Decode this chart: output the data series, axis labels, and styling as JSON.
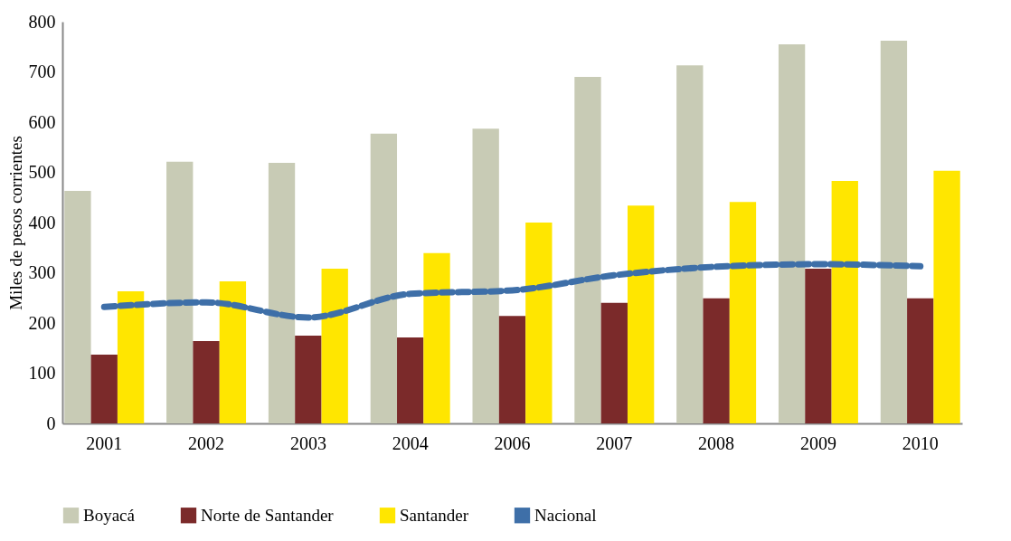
{
  "chart_data": {
    "type": "bar",
    "ylabel": "Miles de pesos corrientes",
    "categories": [
      "2001",
      "2002",
      "2003",
      "2004",
      "2006",
      "2007",
      "2008",
      "2009",
      "2010"
    ],
    "ylim": [
      0,
      800
    ],
    "yticks": [
      0,
      100,
      200,
      300,
      400,
      500,
      600,
      700,
      800
    ],
    "grid": false,
    "legend": "bottom",
    "series": [
      {
        "name": "Boyacá",
        "color": "#c8cbb5",
        "values": [
          463,
          521,
          519,
          577,
          587,
          690,
          713,
          755,
          762
        ]
      },
      {
        "name": "Norte de Santander",
        "color": "#7b2a2a",
        "values": [
          137,
          164,
          175,
          171,
          214,
          240,
          249,
          308,
          249
        ]
      },
      {
        "name": "Santander",
        "color": "#ffe600",
        "values": [
          263,
          283,
          308,
          339,
          400,
          434,
          441,
          483,
          503
        ]
      },
      {
        "name": "Nacional",
        "type": "line",
        "color": "#3e6fa8",
        "line_style": "dashed",
        "values": [
          232,
          241,
          211,
          258,
          265,
          295,
          312,
          317,
          313
        ]
      }
    ]
  }
}
